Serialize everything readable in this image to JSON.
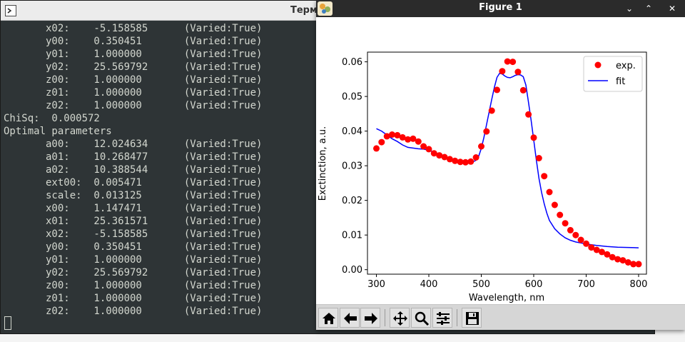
{
  "terminal": {
    "title": "Терм",
    "lines": [
      "       x02:    -5.158585      (Varied:True)",
      "       y00:    0.350451       (Varied:True)",
      "       y01:    1.000000       (Varied:True)",
      "       y02:    25.569792      (Varied:True)",
      "       z00:    1.000000       (Varied:True)",
      "       z01:    1.000000       (Varied:True)",
      "       z02:    1.000000       (Varied:True)",
      "ChiSq:  0.000572",
      "Optimal parameters",
      "       a00:    12.024634      (Varied:True)",
      "       a01:    10.268477      (Varied:True)",
      "       a02:    10.388544      (Varied:True)",
      "       ext00:  0.005471       (Varied:True)",
      "       scale:  0.013125       (Varied:True)",
      "       x00:    1.147471       (Varied:True)",
      "       x01:    25.361571      (Varied:True)",
      "       x02:    -5.158585      (Varied:True)",
      "       y00:    0.350451       (Varied:True)",
      "       y01:    1.000000       (Varied:True)",
      "       y02:    25.569792      (Varied:True)",
      "       z00:    1.000000       (Varied:True)",
      "       z01:    1.000000       (Varied:True)",
      "       z02:    1.000000       (Varied:True)"
    ]
  },
  "figure": {
    "title": "Figure 1",
    "window_buttons": [
      "⌄",
      "⌃",
      "✕"
    ],
    "toolbar_icons": [
      "home-icon",
      "back-arrow-icon",
      "forward-arrow-icon",
      "pan-icon",
      "zoom-icon",
      "configure-subplots-icon",
      "save-icon"
    ]
  },
  "chart_data": {
    "type": "scatter",
    "xlabel": "Wavelength, nm",
    "ylabel": "Exctinction, a.u.",
    "xlim": [
      283,
      815
    ],
    "ylim": [
      -0.0013,
      0.0628
    ],
    "xticks": [
      300,
      400,
      500,
      600,
      700,
      800
    ],
    "yticks": [
      0.0,
      0.01,
      0.02,
      0.03,
      0.04,
      0.05,
      0.06
    ],
    "ytick_labels": [
      "0.00",
      "0.01",
      "0.02",
      "0.03",
      "0.04",
      "0.05",
      "0.06"
    ],
    "grid": false,
    "legend_position": "top-right",
    "series": [
      {
        "name": "exp.",
        "style": "points",
        "color": "#ff0000",
        "x": [
          300,
          310,
          320,
          330,
          340,
          350,
          360,
          370,
          380,
          390,
          400,
          410,
          420,
          430,
          440,
          450,
          460,
          470,
          480,
          490,
          500,
          510,
          520,
          530,
          540,
          550,
          560,
          570,
          580,
          590,
          600,
          610,
          620,
          630,
          640,
          650,
          660,
          670,
          680,
          690,
          700,
          710,
          720,
          730,
          740,
          750,
          760,
          770,
          780,
          790,
          800
        ],
        "y": [
          0.035,
          0.0368,
          0.0385,
          0.039,
          0.0388,
          0.0382,
          0.0376,
          0.0378,
          0.037,
          0.0356,
          0.0348,
          0.0336,
          0.033,
          0.0325,
          0.0319,
          0.0314,
          0.0311,
          0.031,
          0.0312,
          0.0324,
          0.0356,
          0.0399,
          0.0459,
          0.0519,
          0.0573,
          0.0601,
          0.06,
          0.0571,
          0.0518,
          0.0448,
          0.0381,
          0.0322,
          0.027,
          0.0224,
          0.0187,
          0.0158,
          0.0134,
          0.0114,
          0.01,
          0.0086,
          0.0075,
          0.0064,
          0.0057,
          0.0051,
          0.0044,
          0.0036,
          0.003,
          0.0027,
          0.0021,
          0.0016,
          0.0016
        ]
      },
      {
        "name": "fit",
        "style": "line",
        "color": "#0000ff",
        "x": [
          300,
          310,
          320,
          330,
          340,
          350,
          360,
          370,
          380,
          390,
          400,
          410,
          420,
          430,
          440,
          450,
          460,
          470,
          480,
          490,
          495,
          500,
          505,
          510,
          515,
          520,
          525,
          530,
          535,
          540,
          545,
          550,
          555,
          560,
          565,
          570,
          575,
          580,
          585,
          590,
          595,
          600,
          605,
          610,
          615,
          620,
          625,
          630,
          640,
          650,
          660,
          670,
          680,
          690,
          700,
          720,
          740,
          760,
          780,
          800
        ],
        "y": [
          0.0407,
          0.04,
          0.0389,
          0.0378,
          0.037,
          0.036,
          0.0353,
          0.0351,
          0.0349,
          0.0348,
          0.0345,
          0.0339,
          0.033,
          0.0324,
          0.0318,
          0.0313,
          0.031,
          0.0306,
          0.0308,
          0.0316,
          0.0327,
          0.035,
          0.0382,
          0.0418,
          0.0455,
          0.0492,
          0.0527,
          0.0555,
          0.0567,
          0.0565,
          0.0559,
          0.0555,
          0.0554,
          0.0557,
          0.0561,
          0.0563,
          0.0562,
          0.0557,
          0.0533,
          0.0484,
          0.0432,
          0.0374,
          0.0316,
          0.0264,
          0.0223,
          0.019,
          0.0163,
          0.0142,
          0.0118,
          0.0103,
          0.0092,
          0.0085,
          0.008,
          0.0077,
          0.0074,
          0.007,
          0.0067,
          0.0065,
          0.0064,
          0.0063
        ]
      }
    ]
  }
}
